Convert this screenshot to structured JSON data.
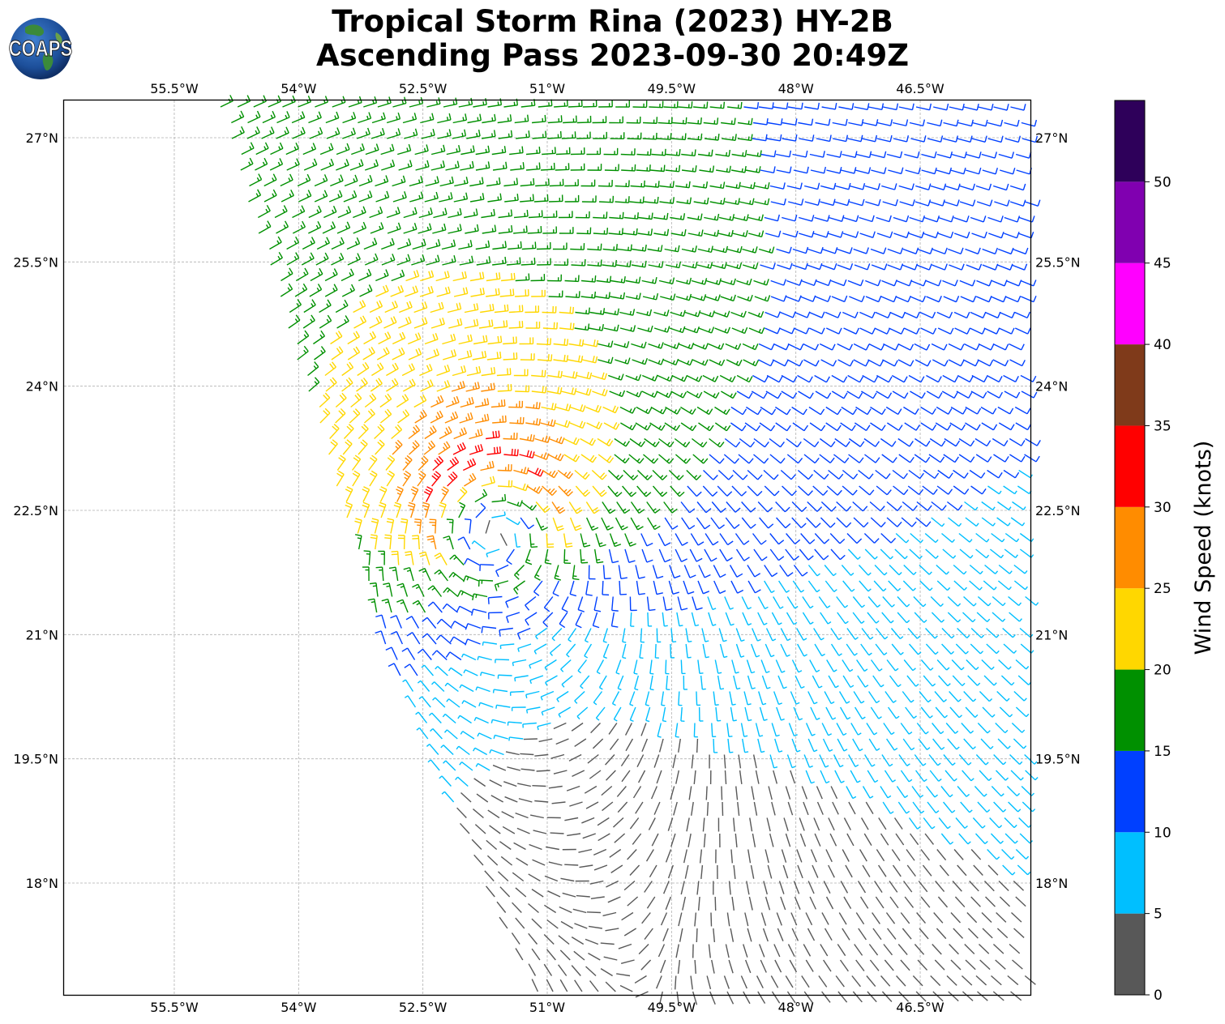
{
  "header": {
    "title_line1": "Tropical Storm Rina (2023) HY-2B",
    "title_line2": "Ascending Pass 2023-09-30 20:49Z",
    "logo_text": "COAPS"
  },
  "map": {
    "lon_ticks": [
      "55.5°W",
      "54°W",
      "52.5°W",
      "51°W",
      "49.5°W",
      "48°W",
      "46.5°W"
    ],
    "lat_ticks": [
      "27°N",
      "25.5°N",
      "24°N",
      "22.5°N",
      "21°N",
      "19.5°N",
      "18°N"
    ],
    "lon_values": [
      -55.5,
      -54,
      -52.5,
      -51,
      -49.5,
      -48,
      -46.5
    ],
    "lat_values": [
      27,
      25.5,
      24,
      22.5,
      21,
      19.5,
      18
    ],
    "extent": {
      "lon_min": -56.83,
      "lon_max": -45.17,
      "lat_min": 16.65,
      "lat_max": 27.45
    },
    "storm_center": {
      "lon": -51.7,
      "lat": 22.4
    },
    "gridlines": true
  },
  "colorbar": {
    "label": "Wind Speed (knots)",
    "ticks": [
      "0",
      "5",
      "10",
      "15",
      "20",
      "25",
      "30",
      "35",
      "40",
      "45",
      "50"
    ],
    "bins": [
      {
        "min": 0,
        "max": 5,
        "color": "#585858"
      },
      {
        "min": 5,
        "max": 10,
        "color": "#00BFFF"
      },
      {
        "min": 10,
        "max": 15,
        "color": "#0040FF"
      },
      {
        "min": 15,
        "max": 20,
        "color": "#009000"
      },
      {
        "min": 20,
        "max": 25,
        "color": "#FFD700"
      },
      {
        "min": 25,
        "max": 30,
        "color": "#FF8C00"
      },
      {
        "min": 30,
        "max": 35,
        "color": "#FF0000"
      },
      {
        "min": 35,
        "max": 40,
        "color": "#7F3A1A"
      },
      {
        "min": 40,
        "max": 45,
        "color": "#FF00FF"
      },
      {
        "min": 45,
        "max": 50,
        "color": "#8000B0"
      },
      {
        "min": 50,
        "max": 55,
        "color": "#2E005A"
      }
    ]
  }
}
